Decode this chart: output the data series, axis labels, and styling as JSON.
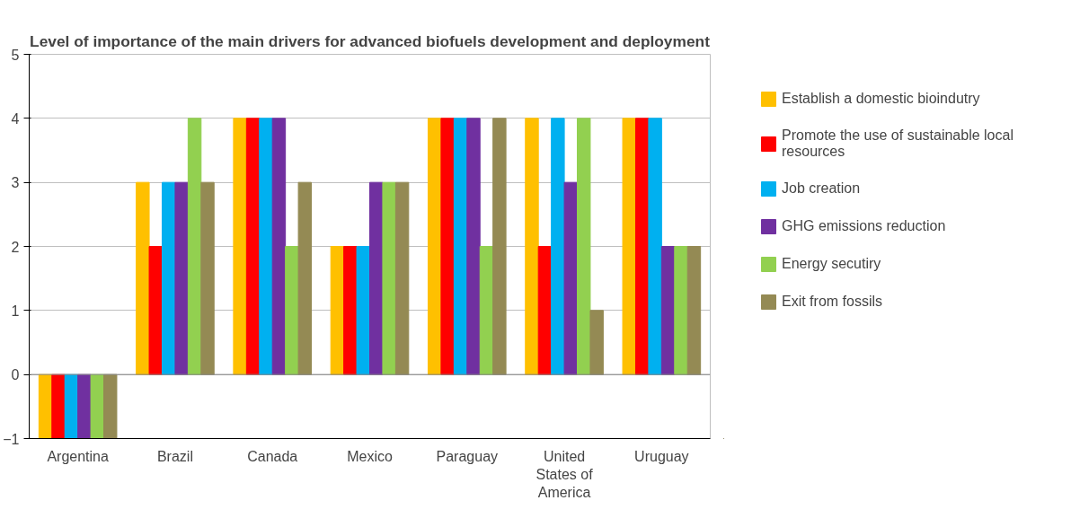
{
  "chart_data": {
    "type": "bar",
    "title": "Level of importance of the main drivers for advanced biofuels development and deployment",
    "categories": [
      "Argentina",
      "Brazil",
      "Canada",
      "Mexico",
      "Paraguay",
      "United States of America",
      "Uruguay"
    ],
    "series": [
      {
        "name": "Establish a domestic bioindutry",
        "color": "#ffc000",
        "values": [
          -1,
          3,
          4,
          2,
          4,
          4,
          4
        ]
      },
      {
        "name": "Promote the use of sustainable local resources",
        "color": "#ff0000",
        "values": [
          -1,
          2,
          4,
          2,
          4,
          2,
          4
        ]
      },
      {
        "name": "Job creation",
        "color": "#00b0f0",
        "values": [
          -1,
          3,
          4,
          2,
          4,
          4,
          4
        ]
      },
      {
        "name": "GHG emissions reduction",
        "color": "#7030a0",
        "values": [
          -1,
          3,
          4,
          3,
          4,
          3,
          2
        ]
      },
      {
        "name": "Energy secutiry",
        "color": "#92d050",
        "values": [
          -1,
          4,
          2,
          3,
          2,
          4,
          2
        ]
      },
      {
        "name": "Exit from fossils",
        "color": "#948a54",
        "values": [
          -1,
          3,
          3,
          3,
          4,
          1,
          2
        ]
      }
    ],
    "ylim": [
      -1,
      5
    ],
    "yticks": [
      -1,
      0,
      1,
      2,
      3,
      4,
      5
    ],
    "grid": "y",
    "legend": "right"
  }
}
